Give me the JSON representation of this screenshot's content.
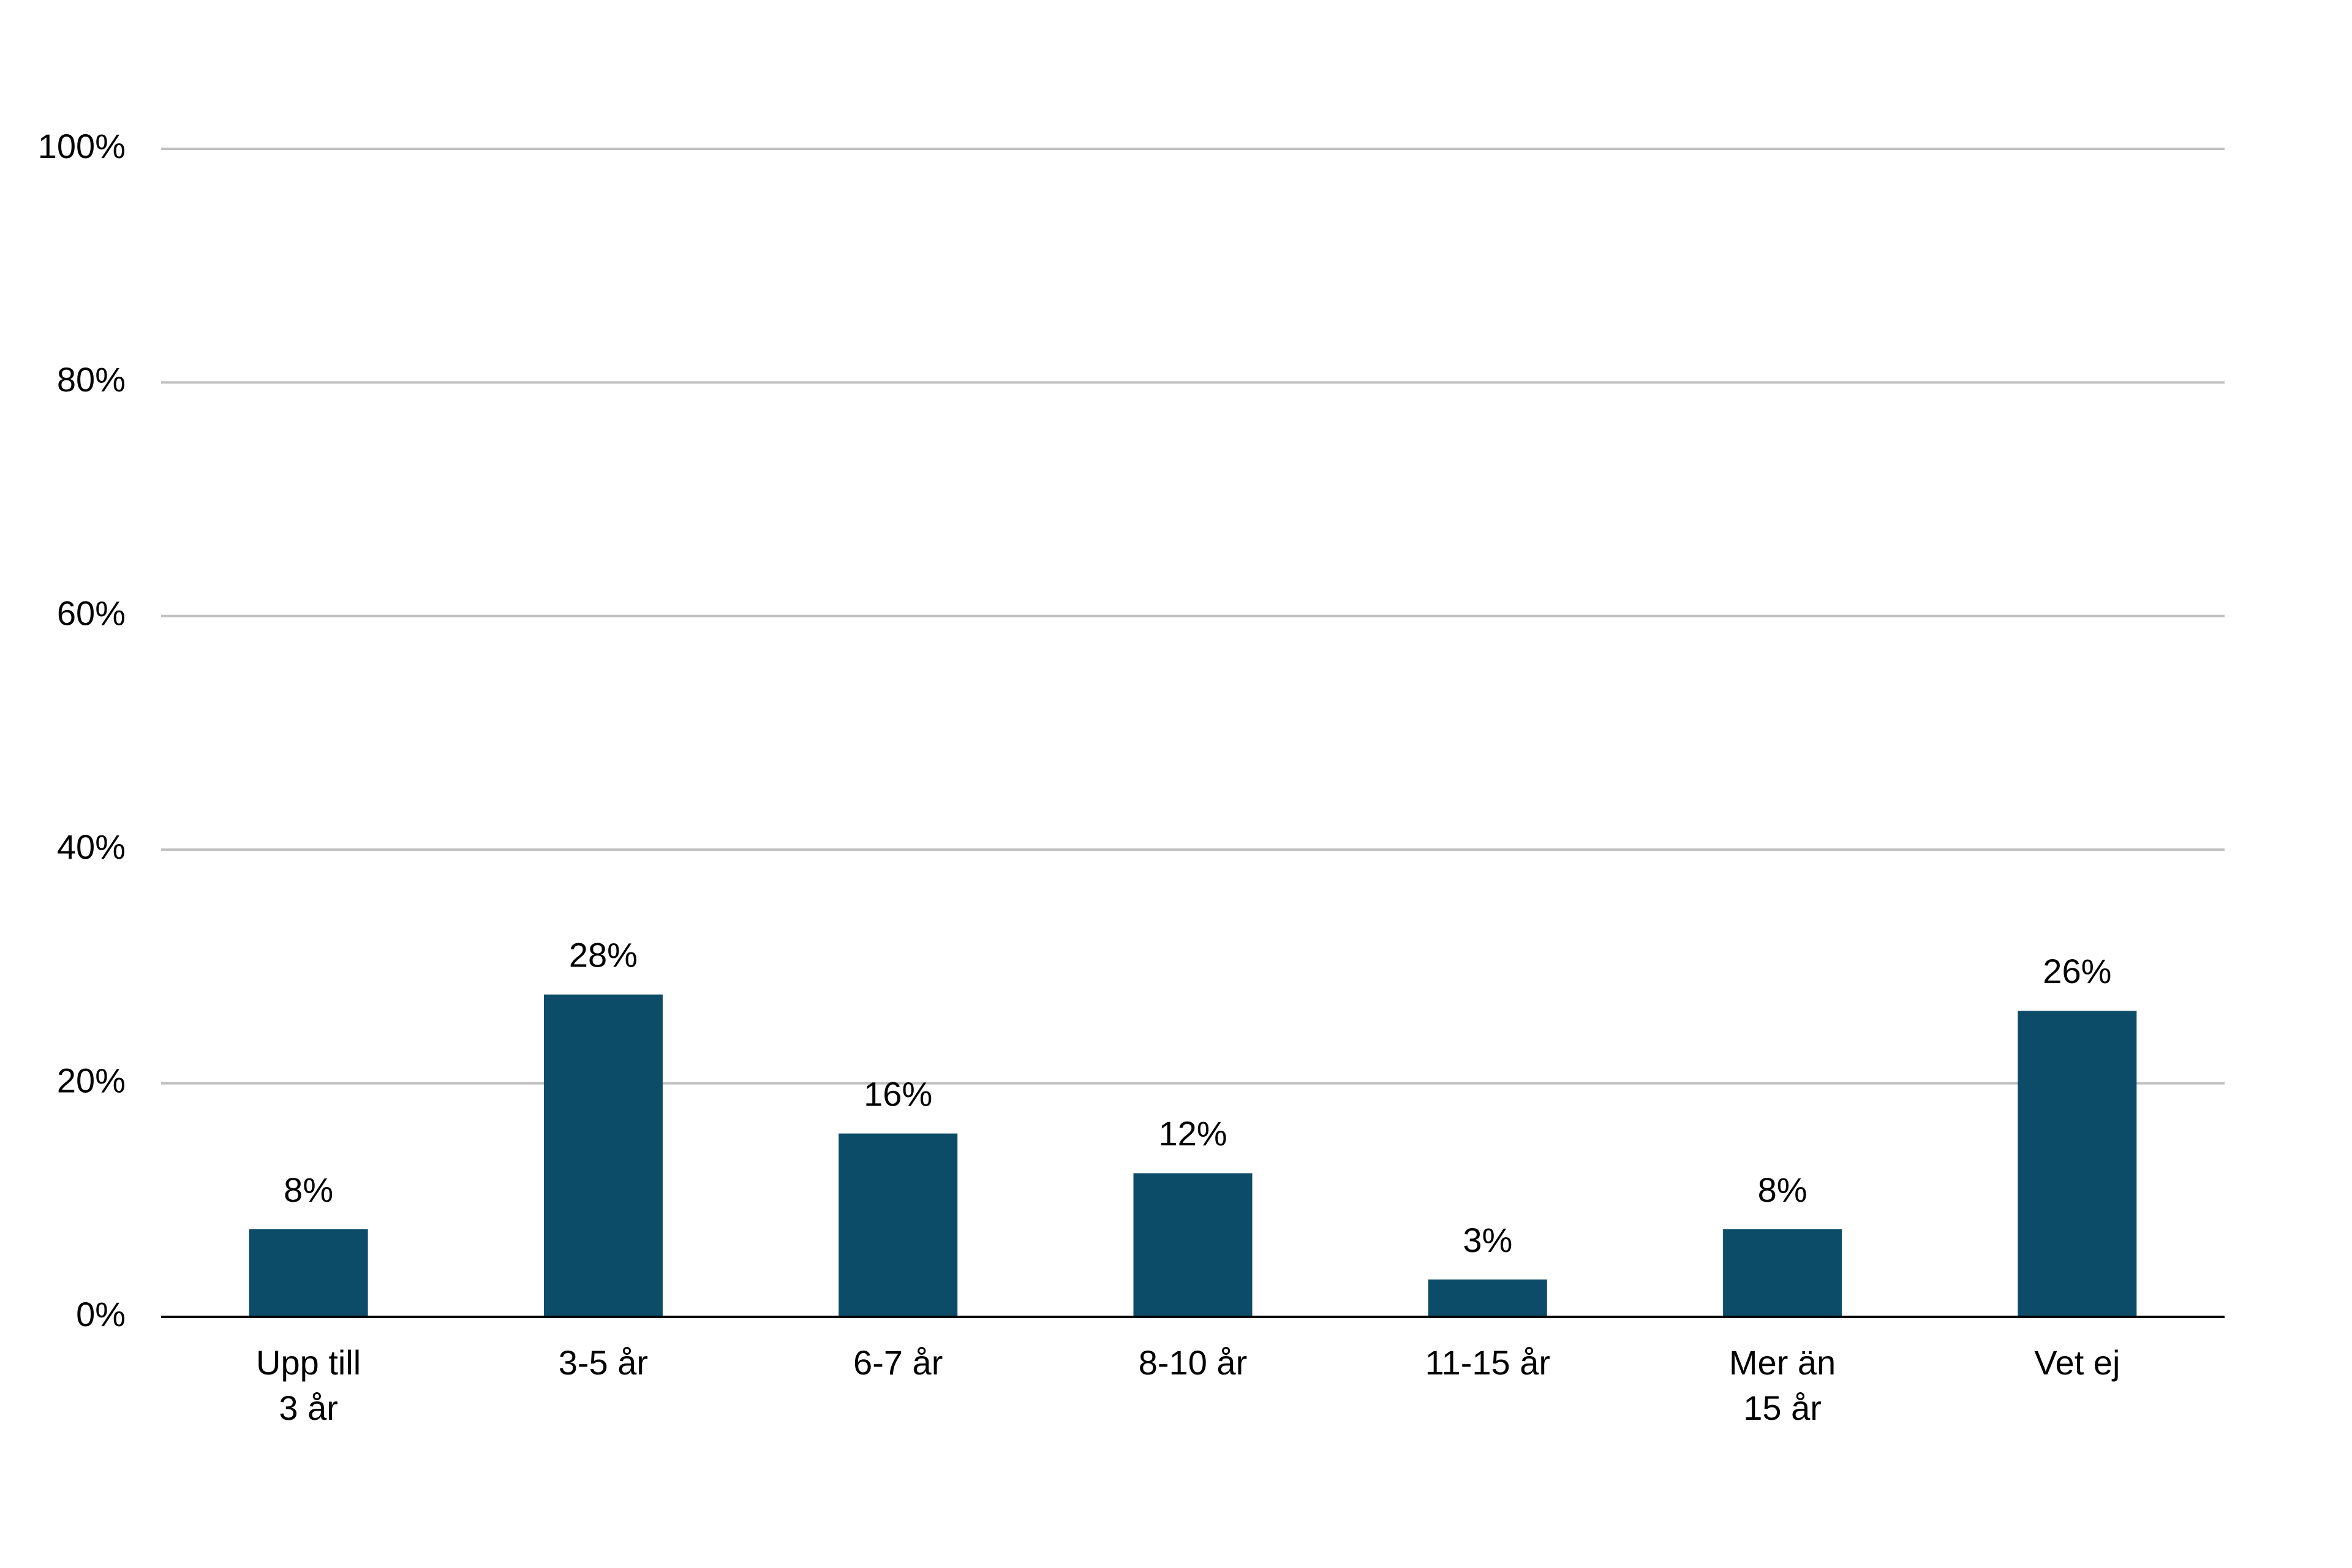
{
  "chart_data": {
    "type": "bar",
    "categories": [
      "Upp till 3 år",
      "3-5 år",
      "6-7 år",
      "8-10 år",
      "11-15 år",
      "Mer än 15 år",
      "Vet ej"
    ],
    "values": [
      7.5,
      27.6,
      15.7,
      12.3,
      3.2,
      7.5,
      26.2
    ],
    "value_labels": [
      "8%",
      "28%",
      "16%",
      "12%",
      "3%",
      "8%",
      "26%"
    ],
    "color": "#0d4c68",
    "ylim": [
      0,
      100
    ],
    "yticks": [
      {
        "value": 0,
        "label": "0%"
      },
      {
        "value": 20,
        "label": "20%"
      },
      {
        "value": 40,
        "label": "40%"
      },
      {
        "value": 60,
        "label": "60%"
      },
      {
        "value": 80,
        "label": "80%"
      },
      {
        "value": 100,
        "label": "100%"
      }
    ],
    "grid": true
  }
}
